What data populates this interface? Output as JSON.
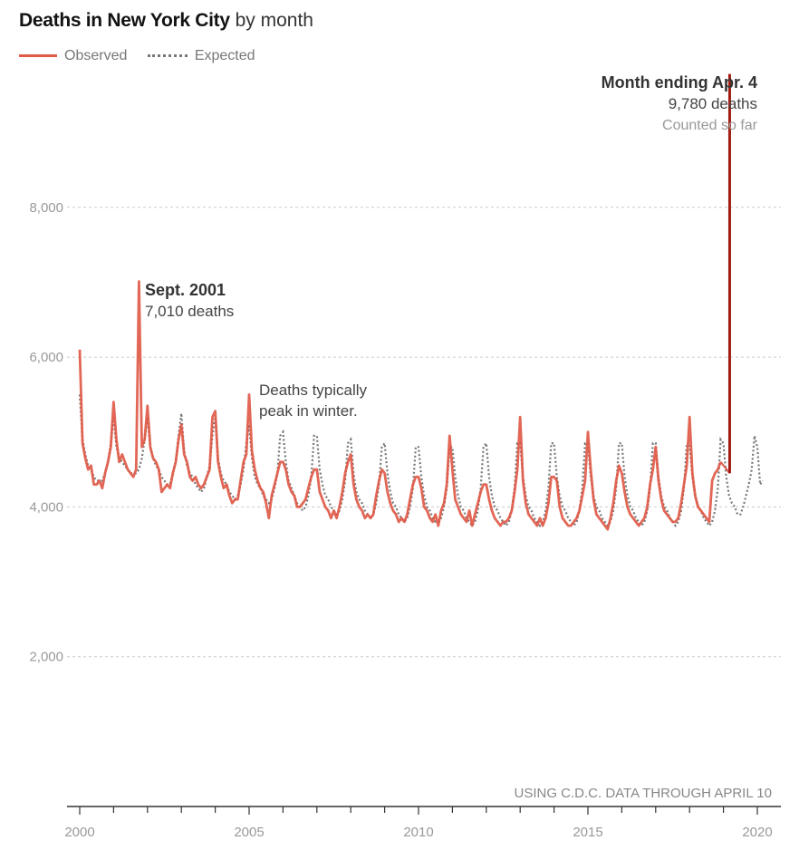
{
  "header": {
    "title_bold": "Deaths in New York City",
    "title_light": "by month"
  },
  "legend": {
    "observed": "Observed",
    "expected": "Expected"
  },
  "colors": {
    "observed": "#e05a48",
    "expected": "#777777",
    "highlight": "#a11d13",
    "grid": "#cccccc",
    "axis": "#333333"
  },
  "annotations": {
    "sept2001_title": "Sept. 2001",
    "sept2001_value": "7,010 deaths",
    "winter_line1": "Deaths typically",
    "winter_line2": "peak in winter.",
    "april_title": "Month ending Apr. 4",
    "april_value": "9,780 deaths",
    "april_note": "Counted so far"
  },
  "source": "USING C.D.C. DATA THROUGH APRIL 10",
  "chart_data": {
    "type": "line",
    "title": "Deaths in New York City by month",
    "xlabel": "",
    "ylabel": "",
    "grid": true,
    "legend_placement": "top-left",
    "x_ticks": [
      "2000",
      "2005",
      "2010",
      "2015",
      "2020"
    ],
    "y_ticks": [
      2000,
      4000,
      6000,
      8000
    ],
    "y_tick_labels": [
      "2,000",
      "4,000",
      "6,000",
      "8,000"
    ],
    "xlim": [
      2000,
      2020.4
    ],
    "ylim": [
      0,
      9800
    ],
    "series": [
      {
        "name": "Observed",
        "start_year": 2000,
        "values": [
          6100,
          4850,
          4650,
          4500,
          4550,
          4300,
          4300,
          4350,
          4250,
          4450,
          4600,
          4800,
          5400,
          4900,
          4600,
          4700,
          4600,
          4500,
          4450,
          4400,
          4500,
          7010,
          4800,
          4900,
          5350,
          4800,
          4650,
          4600,
          4500,
          4200,
          4250,
          4300,
          4250,
          4450,
          4600,
          4900,
          5100,
          4700,
          4600,
          4400,
          4350,
          4400,
          4300,
          4250,
          4300,
          4400,
          4500,
          5200,
          5280,
          4600,
          4400,
          4250,
          4300,
          4150,
          4050,
          4100,
          4100,
          4350,
          4600,
          4700,
          5500,
          4750,
          4500,
          4350,
          4250,
          4200,
          4050,
          3850,
          4150,
          4300,
          4450,
          4600,
          4600,
          4500,
          4300,
          4200,
          4150,
          4000,
          4000,
          4050,
          4100,
          4250,
          4400,
          4500,
          4500,
          4200,
          4100,
          4000,
          3950,
          3850,
          3950,
          3850,
          4000,
          4200,
          4450,
          4600,
          4700,
          4300,
          4100,
          4000,
          3950,
          3850,
          3900,
          3850,
          3900,
          4150,
          4350,
          4500,
          4450,
          4200,
          4050,
          3950,
          3900,
          3800,
          3850,
          3800,
          3900,
          4100,
          4300,
          4400,
          4400,
          4250,
          4000,
          3950,
          3850,
          3800,
          3900,
          3750,
          3950,
          4050,
          4300,
          4950,
          4500,
          4100,
          4000,
          3900,
          3850,
          3800,
          3950,
          3750,
          3900,
          4050,
          4200,
          4300,
          4300,
          4100,
          3950,
          3850,
          3800,
          3750,
          3800,
          3800,
          3850,
          3950,
          4200,
          4500,
          5200,
          4350,
          4050,
          3900,
          3850,
          3800,
          3750,
          3850,
          3750,
          3850,
          4050,
          4400,
          4400,
          4350,
          4000,
          3850,
          3800,
          3750,
          3750,
          3800,
          3850,
          3950,
          4150,
          4350,
          5000,
          4500,
          4100,
          3900,
          3850,
          3800,
          3750,
          3700,
          3850,
          4050,
          4350,
          4550,
          4450,
          4200,
          4000,
          3900,
          3850,
          3800,
          3750,
          3800,
          3850,
          4000,
          4300,
          4500,
          4800,
          4350,
          4100,
          3950,
          3900,
          3850,
          3800,
          3800,
          3850,
          4050,
          4300,
          4550,
          5200,
          4450,
          4150,
          4000,
          3950,
          3900,
          3850,
          3800,
          4350,
          4450,
          4500,
          4600
        ],
        "final_point": {
          "label": "Month ending Apr. 4",
          "value": 9780
        }
      },
      {
        "name": "Expected",
        "start_year": 2000,
        "values": [
          5500,
          4900,
          4700,
          4550,
          4500,
          4400,
          4350,
          4350,
          4350,
          4450,
          4600,
          4850,
          5200,
          4800,
          4650,
          4600,
          4550,
          4500,
          4450,
          4450,
          4450,
          4500,
          4650,
          4900,
          5200,
          4800,
          4650,
          4550,
          4500,
          4400,
          4350,
          4300,
          4300,
          4450,
          4600,
          4950,
          5250,
          4750,
          4550,
          4450,
          4400,
          4300,
          4250,
          4200,
          4250,
          4400,
          4550,
          4950,
          5200,
          4650,
          4450,
          4350,
          4300,
          4200,
          4150,
          4100,
          4150,
          4300,
          4500,
          4850,
          5100,
          4650,
          4400,
          4300,
          4250,
          4150,
          4100,
          4050,
          4100,
          4250,
          4450,
          4950,
          5000,
          4600,
          4350,
          4250,
          4150,
          4050,
          4000,
          3950,
          4000,
          4150,
          4400,
          4950,
          4950,
          4500,
          4300,
          4150,
          4100,
          4000,
          3950,
          3900,
          3950,
          4100,
          4350,
          4850,
          4900,
          4450,
          4200,
          4100,
          4050,
          3950,
          3900,
          3850,
          3900,
          4050,
          4300,
          4800,
          4850,
          4450,
          4200,
          4050,
          4000,
          3900,
          3850,
          3800,
          3850,
          4000,
          4250,
          4800,
          4800,
          4400,
          4150,
          4000,
          3950,
          3850,
          3800,
          3800,
          3850,
          4000,
          4250,
          4800,
          4800,
          4400,
          4150,
          4000,
          3950,
          3850,
          3800,
          3750,
          3800,
          3950,
          4250,
          4800,
          4850,
          4400,
          4150,
          4000,
          3950,
          3850,
          3800,
          3750,
          3800,
          3950,
          4250,
          4850,
          4850,
          4400,
          4150,
          4000,
          3950,
          3850,
          3800,
          3750,
          3800,
          3950,
          4250,
          4850,
          4850,
          4400,
          4150,
          4000,
          3950,
          3850,
          3800,
          3750,
          3800,
          3950,
          4250,
          4850,
          4850,
          4400,
          4150,
          4000,
          3950,
          3850,
          3800,
          3750,
          3800,
          3950,
          4250,
          4850,
          4850,
          4400,
          4150,
          4000,
          3950,
          3850,
          3800,
          3750,
          3800,
          3950,
          4250,
          4850,
          4850,
          4400,
          4150,
          4000,
          3950,
          3850,
          3800,
          3750,
          3800,
          3950,
          4250,
          4850,
          4850,
          4400,
          4150,
          4000,
          3950,
          3850,
          3800,
          3750,
          3800,
          3950,
          4250,
          4900,
          4850,
          4400,
          4150,
          4050,
          4000,
          3900,
          3900,
          4000,
          4150,
          4300,
          4500,
          4950,
          4800,
          4300,
          4350
        ]
      }
    ]
  }
}
